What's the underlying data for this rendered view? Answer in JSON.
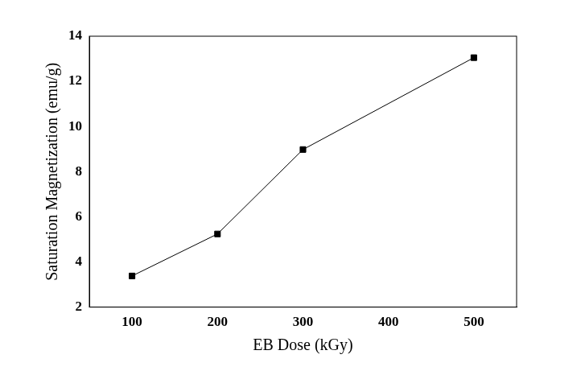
{
  "chart_data": {
    "type": "line",
    "x_label": "EB Dose (kGy)",
    "y_label": "Saturation Magnetization (emu/g)",
    "x": [
      100,
      200,
      300,
      500
    ],
    "values": [
      3.38,
      5.24,
      8.98,
      13.05
    ],
    "color": "#000000",
    "marker": "square",
    "line_style": "solid",
    "xlim": [
      50,
      550
    ],
    "xticks": [
      100,
      200,
      300,
      400,
      500
    ],
    "ylim": [
      2,
      14
    ],
    "yticks": [
      2,
      4,
      6,
      8,
      10,
      12,
      14
    ],
    "grid": false
  }
}
